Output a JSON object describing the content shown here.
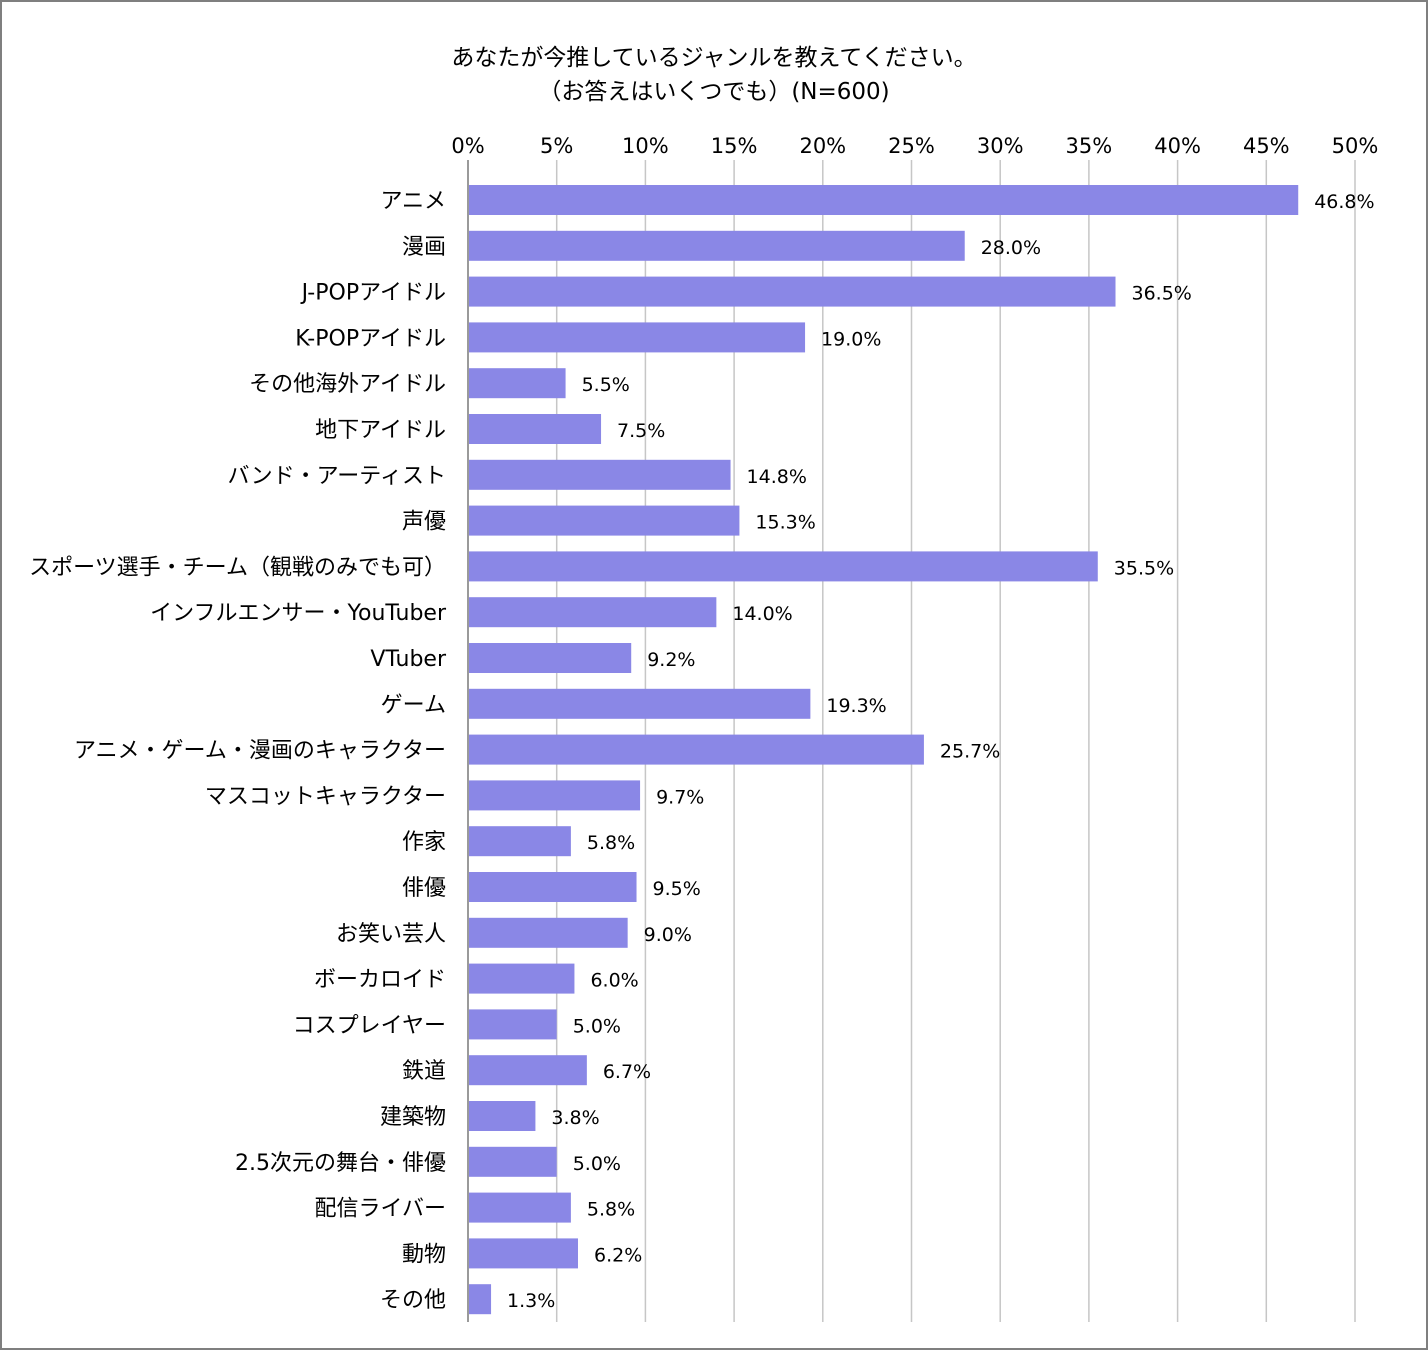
{
  "chart_data": {
    "type": "bar",
    "orientation": "horizontal",
    "title": "あなたが今推しているジャンルを教えてください。",
    "subtitle": "（お答えはいくつでも）(N=600)",
    "xlim": [
      0,
      50
    ],
    "x_ticks": [
      "0%",
      "5%",
      "10%",
      "15%",
      "20%",
      "25%",
      "30%",
      "35%",
      "40%",
      "45%",
      "50%"
    ],
    "x_tick_values": [
      0,
      5,
      10,
      15,
      20,
      25,
      30,
      35,
      40,
      45,
      50
    ],
    "x_axis_position": "top",
    "grid": true,
    "legend": "none",
    "bar_color": "#8a87e6",
    "categories": [
      "アニメ",
      "漫画",
      "J-POPアイドル",
      "K-POPアイドル",
      "その他海外アイドル",
      "地下アイドル",
      "バンド・アーティスト",
      "声優",
      "スポーツ選手・チーム（観戦のみでも可）",
      "インフルエンサー・YouTuber",
      "VTuber",
      "ゲーム",
      "アニメ・ゲーム・漫画のキャラクター",
      "マスコットキャラクター",
      "作家",
      "俳優",
      "お笑い芸人",
      "ボーカロイド",
      "コスプレイヤー",
      "鉄道",
      "建築物",
      "2.5次元の舞台・俳優",
      "配信ライバー",
      "動物",
      "その他"
    ],
    "values": [
      46.8,
      28.0,
      36.5,
      19.0,
      5.5,
      7.5,
      14.8,
      15.3,
      35.5,
      14.0,
      9.2,
      19.3,
      25.7,
      9.7,
      5.8,
      9.5,
      9.0,
      6.0,
      5.0,
      6.7,
      3.8,
      5.0,
      5.8,
      6.2,
      1.3
    ],
    "data_labels": [
      "46.8%",
      "28.0%",
      "36.5%",
      "19.0%",
      "5.5%",
      "7.5%",
      "14.8%",
      "15.3%",
      "35.5%",
      "14.0%",
      "9.2%",
      "19.3%",
      "25.7%",
      "9.7%",
      "5.8%",
      "9.5%",
      "9.0%",
      "6.0%",
      "5.0%",
      "6.7%",
      "3.8%",
      "5.0%",
      "5.8%",
      "6.2%",
      "1.3%"
    ]
  }
}
